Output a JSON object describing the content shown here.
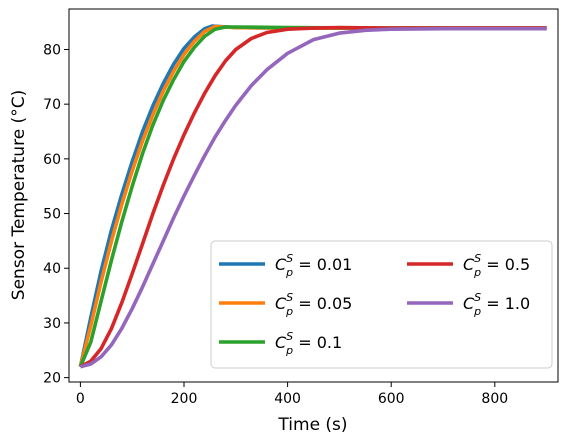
{
  "chart_data": {
    "type": "line",
    "xlabel": "Time (s)",
    "ylabel": "Sensor Temperature (°C)",
    "xlim": [
      -22,
      922
    ],
    "ylim": [
      19.2,
      87.4
    ],
    "xticks": [
      0,
      200,
      400,
      600,
      800
    ],
    "yticks": [
      20,
      30,
      40,
      50,
      60,
      70,
      80
    ],
    "grid": false,
    "legend_placement": "lower-right",
    "legend_columns": 2,
    "series": [
      {
        "legend_symbol": "C",
        "legend_sub": "p",
        "legend_sup": "S",
        "legend_value": " = 0.01",
        "color": "#1f77b4",
        "x": [
          0,
          20,
          40,
          60,
          80,
          100,
          120,
          140,
          160,
          180,
          200,
          220,
          240,
          255,
          300,
          400,
          600,
          900
        ],
        "y": [
          22.0,
          31.0,
          39.5,
          47.0,
          53.5,
          59.5,
          65.0,
          69.7,
          73.8,
          77.3,
          80.2,
          82.3,
          83.8,
          84.3,
          84.0,
          83.9,
          83.9,
          83.9
        ]
      },
      {
        "legend_symbol": "C",
        "legend_sub": "p",
        "legend_sup": "S",
        "legend_value": " = 0.05",
        "color": "#ff7f0e",
        "x": [
          0,
          20,
          40,
          60,
          80,
          100,
          120,
          140,
          160,
          180,
          200,
          220,
          240,
          260,
          300,
          400,
          600,
          900
        ],
        "y": [
          22.0,
          29.5,
          37.5,
          45.0,
          51.7,
          57.8,
          63.3,
          68.1,
          72.4,
          76.0,
          79.1,
          81.5,
          83.3,
          84.2,
          84.0,
          83.9,
          83.9,
          83.9
        ]
      },
      {
        "legend_symbol": "C",
        "legend_sub": "p",
        "legend_sup": "S",
        "legend_value": " = 0.1",
        "color": "#2ca02c",
        "x": [
          0,
          20,
          40,
          60,
          80,
          100,
          120,
          140,
          160,
          180,
          200,
          220,
          240,
          260,
          280,
          300,
          400,
          600,
          900
        ],
        "y": [
          22.0,
          26.5,
          34.0,
          41.5,
          48.5,
          55.0,
          61.0,
          66.2,
          70.7,
          74.5,
          77.8,
          80.4,
          82.4,
          83.7,
          84.1,
          84.1,
          84.0,
          83.9,
          83.9
        ]
      },
      {
        "legend_symbol": "C",
        "legend_sub": "p",
        "legend_sup": "S",
        "legend_value": " = 0.5",
        "color": "#d62728",
        "x": [
          0,
          20,
          40,
          60,
          80,
          100,
          120,
          140,
          160,
          180,
          200,
          220,
          240,
          260,
          280,
          300,
          330,
          360,
          400,
          450,
          500,
          600,
          900
        ],
        "y": [
          22.0,
          23.0,
          25.3,
          29.0,
          33.7,
          39.0,
          44.5,
          50.0,
          55.2,
          60.0,
          64.4,
          68.4,
          72.0,
          75.2,
          77.9,
          80.0,
          82.0,
          83.1,
          83.7,
          83.9,
          84.0,
          83.9,
          83.9
        ]
      },
      {
        "legend_symbol": "C",
        "legend_sub": "p",
        "legend_sup": "S",
        "legend_value": " = 1.0",
        "color": "#9467bd",
        "x": [
          0,
          20,
          40,
          60,
          80,
          100,
          120,
          140,
          160,
          180,
          200,
          220,
          240,
          260,
          280,
          300,
          330,
          360,
          400,
          450,
          500,
          550,
          600,
          700,
          800,
          900
        ],
        "y": [
          22.0,
          22.5,
          23.8,
          26.0,
          29.0,
          32.6,
          36.6,
          40.8,
          45.0,
          49.2,
          53.2,
          57.0,
          60.6,
          64.0,
          67.0,
          69.8,
          73.4,
          76.3,
          79.3,
          81.8,
          83.0,
          83.5,
          83.7,
          83.8,
          83.8,
          83.8
        ]
      }
    ]
  }
}
